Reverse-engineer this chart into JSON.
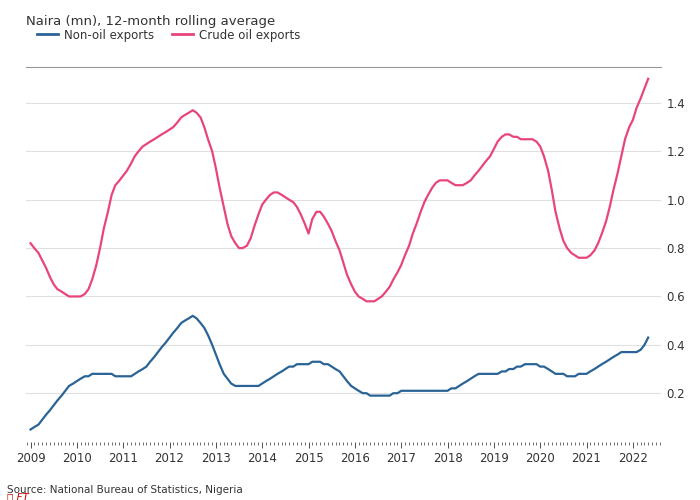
{
  "title": "Naira (mn), 12-month rolling average",
  "source": "Source: National Bureau of Statistics, Nigeria",
  "ft_credit": "Ⓕ FT",
  "legend": [
    "Non-oil exports",
    "Crude oil exports"
  ],
  "line_colors": [
    "#2a6496",
    "#e8457a"
  ],
  "background_color": "#ffffff",
  "plot_bg_color": "#ffffff",
  "text_color": "#333333",
  "grid_color": "#e0e0e0",
  "top_border_color": "#999999",
  "ylim": [
    0.0,
    1.55
  ],
  "yticks": [
    0.2,
    0.4,
    0.6,
    0.8,
    1.0,
    1.2,
    1.4
  ],
  "xlim": [
    2008.9,
    2022.6
  ],
  "x_ticks": [
    2009,
    2010,
    2011,
    2012,
    2013,
    2014,
    2015,
    2016,
    2017,
    2018,
    2019,
    2020,
    2021,
    2022
  ],
  "crude_oil_dates": [
    2009.0,
    2009.08,
    2009.17,
    2009.25,
    2009.33,
    2009.42,
    2009.5,
    2009.58,
    2009.67,
    2009.75,
    2009.83,
    2009.92,
    2010.0,
    2010.08,
    2010.17,
    2010.25,
    2010.33,
    2010.42,
    2010.5,
    2010.58,
    2010.67,
    2010.75,
    2010.83,
    2010.92,
    2011.0,
    2011.08,
    2011.17,
    2011.25,
    2011.33,
    2011.42,
    2011.5,
    2011.58,
    2011.67,
    2011.75,
    2011.83,
    2011.92,
    2012.0,
    2012.08,
    2012.17,
    2012.25,
    2012.33,
    2012.42,
    2012.5,
    2012.58,
    2012.67,
    2012.75,
    2012.83,
    2012.92,
    2013.0,
    2013.08,
    2013.17,
    2013.25,
    2013.33,
    2013.42,
    2013.5,
    2013.58,
    2013.67,
    2013.75,
    2013.83,
    2013.92,
    2014.0,
    2014.08,
    2014.17,
    2014.25,
    2014.33,
    2014.42,
    2014.5,
    2014.58,
    2014.67,
    2014.75,
    2014.83,
    2014.92,
    2015.0,
    2015.08,
    2015.17,
    2015.25,
    2015.33,
    2015.42,
    2015.5,
    2015.58,
    2015.67,
    2015.75,
    2015.83,
    2015.92,
    2016.0,
    2016.08,
    2016.17,
    2016.25,
    2016.33,
    2016.42,
    2016.5,
    2016.58,
    2016.67,
    2016.75,
    2016.83,
    2016.92,
    2017.0,
    2017.08,
    2017.17,
    2017.25,
    2017.33,
    2017.42,
    2017.5,
    2017.58,
    2017.67,
    2017.75,
    2017.83,
    2017.92,
    2018.0,
    2018.08,
    2018.17,
    2018.25,
    2018.33,
    2018.42,
    2018.5,
    2018.58,
    2018.67,
    2018.75,
    2018.83,
    2018.92,
    2019.0,
    2019.08,
    2019.17,
    2019.25,
    2019.33,
    2019.42,
    2019.5,
    2019.58,
    2019.67,
    2019.75,
    2019.83,
    2019.92,
    2020.0,
    2020.08,
    2020.17,
    2020.25,
    2020.33,
    2020.42,
    2020.5,
    2020.58,
    2020.67,
    2020.75,
    2020.83,
    2020.92,
    2021.0,
    2021.08,
    2021.17,
    2021.25,
    2021.33,
    2021.42,
    2021.5,
    2021.58,
    2021.67,
    2021.75,
    2021.83,
    2021.92,
    2022.0,
    2022.08,
    2022.17,
    2022.25,
    2022.33
  ],
  "crude_oil_values": [
    0.82,
    0.8,
    0.78,
    0.75,
    0.72,
    0.68,
    0.65,
    0.63,
    0.62,
    0.61,
    0.6,
    0.6,
    0.6,
    0.6,
    0.61,
    0.63,
    0.67,
    0.73,
    0.8,
    0.88,
    0.95,
    1.02,
    1.06,
    1.08,
    1.1,
    1.12,
    1.15,
    1.18,
    1.2,
    1.22,
    1.23,
    1.24,
    1.25,
    1.26,
    1.27,
    1.28,
    1.29,
    1.3,
    1.32,
    1.34,
    1.35,
    1.36,
    1.37,
    1.36,
    1.34,
    1.3,
    1.25,
    1.2,
    1.13,
    1.05,
    0.97,
    0.9,
    0.85,
    0.82,
    0.8,
    0.8,
    0.81,
    0.84,
    0.89,
    0.94,
    0.98,
    1.0,
    1.02,
    1.03,
    1.03,
    1.02,
    1.01,
    1.0,
    0.99,
    0.97,
    0.94,
    0.9,
    0.86,
    0.92,
    0.95,
    0.95,
    0.93,
    0.9,
    0.87,
    0.83,
    0.79,
    0.74,
    0.69,
    0.65,
    0.62,
    0.6,
    0.59,
    0.58,
    0.58,
    0.58,
    0.59,
    0.6,
    0.62,
    0.64,
    0.67,
    0.7,
    0.73,
    0.77,
    0.81,
    0.86,
    0.9,
    0.95,
    0.99,
    1.02,
    1.05,
    1.07,
    1.08,
    1.08,
    1.08,
    1.07,
    1.06,
    1.06,
    1.06,
    1.07,
    1.08,
    1.1,
    1.12,
    1.14,
    1.16,
    1.18,
    1.21,
    1.24,
    1.26,
    1.27,
    1.27,
    1.26,
    1.26,
    1.25,
    1.25,
    1.25,
    1.25,
    1.24,
    1.22,
    1.18,
    1.12,
    1.04,
    0.95,
    0.88,
    0.83,
    0.8,
    0.78,
    0.77,
    0.76,
    0.76,
    0.76,
    0.77,
    0.79,
    0.82,
    0.86,
    0.91,
    0.97,
    1.04,
    1.11,
    1.18,
    1.25,
    1.3,
    1.33,
    1.38,
    1.42,
    1.46,
    1.5
  ],
  "non_oil_dates": [
    2009.0,
    2009.08,
    2009.17,
    2009.25,
    2009.33,
    2009.42,
    2009.5,
    2009.58,
    2009.67,
    2009.75,
    2009.83,
    2009.92,
    2010.0,
    2010.08,
    2010.17,
    2010.25,
    2010.33,
    2010.42,
    2010.5,
    2010.58,
    2010.67,
    2010.75,
    2010.83,
    2010.92,
    2011.0,
    2011.08,
    2011.17,
    2011.25,
    2011.33,
    2011.42,
    2011.5,
    2011.58,
    2011.67,
    2011.75,
    2011.83,
    2011.92,
    2012.0,
    2012.08,
    2012.17,
    2012.25,
    2012.33,
    2012.42,
    2012.5,
    2012.58,
    2012.67,
    2012.75,
    2012.83,
    2012.92,
    2013.0,
    2013.08,
    2013.17,
    2013.25,
    2013.33,
    2013.42,
    2013.5,
    2013.58,
    2013.67,
    2013.75,
    2013.83,
    2013.92,
    2014.0,
    2014.08,
    2014.17,
    2014.25,
    2014.33,
    2014.42,
    2014.5,
    2014.58,
    2014.67,
    2014.75,
    2014.83,
    2014.92,
    2015.0,
    2015.08,
    2015.17,
    2015.25,
    2015.33,
    2015.42,
    2015.5,
    2015.58,
    2015.67,
    2015.75,
    2015.83,
    2015.92,
    2016.0,
    2016.08,
    2016.17,
    2016.25,
    2016.33,
    2016.42,
    2016.5,
    2016.58,
    2016.67,
    2016.75,
    2016.83,
    2016.92,
    2017.0,
    2017.08,
    2017.17,
    2017.25,
    2017.33,
    2017.42,
    2017.5,
    2017.58,
    2017.67,
    2017.75,
    2017.83,
    2017.92,
    2018.0,
    2018.08,
    2018.17,
    2018.25,
    2018.33,
    2018.42,
    2018.5,
    2018.58,
    2018.67,
    2018.75,
    2018.83,
    2018.92,
    2019.0,
    2019.08,
    2019.17,
    2019.25,
    2019.33,
    2019.42,
    2019.5,
    2019.58,
    2019.67,
    2019.75,
    2019.83,
    2019.92,
    2020.0,
    2020.08,
    2020.17,
    2020.25,
    2020.33,
    2020.42,
    2020.5,
    2020.58,
    2020.67,
    2020.75,
    2020.83,
    2020.92,
    2021.0,
    2021.08,
    2021.17,
    2021.25,
    2021.33,
    2021.42,
    2021.5,
    2021.58,
    2021.67,
    2021.75,
    2021.83,
    2021.92,
    2022.0,
    2022.08,
    2022.17,
    2022.25,
    2022.33
  ],
  "non_oil_values": [
    0.05,
    0.06,
    0.07,
    0.09,
    0.11,
    0.13,
    0.15,
    0.17,
    0.19,
    0.21,
    0.23,
    0.24,
    0.25,
    0.26,
    0.27,
    0.27,
    0.28,
    0.28,
    0.28,
    0.28,
    0.28,
    0.28,
    0.27,
    0.27,
    0.27,
    0.27,
    0.27,
    0.28,
    0.29,
    0.3,
    0.31,
    0.33,
    0.35,
    0.37,
    0.39,
    0.41,
    0.43,
    0.45,
    0.47,
    0.49,
    0.5,
    0.51,
    0.52,
    0.51,
    0.49,
    0.47,
    0.44,
    0.4,
    0.36,
    0.32,
    0.28,
    0.26,
    0.24,
    0.23,
    0.23,
    0.23,
    0.23,
    0.23,
    0.23,
    0.23,
    0.24,
    0.25,
    0.26,
    0.27,
    0.28,
    0.29,
    0.3,
    0.31,
    0.31,
    0.32,
    0.32,
    0.32,
    0.32,
    0.33,
    0.33,
    0.33,
    0.32,
    0.32,
    0.31,
    0.3,
    0.29,
    0.27,
    0.25,
    0.23,
    0.22,
    0.21,
    0.2,
    0.2,
    0.19,
    0.19,
    0.19,
    0.19,
    0.19,
    0.19,
    0.2,
    0.2,
    0.21,
    0.21,
    0.21,
    0.21,
    0.21,
    0.21,
    0.21,
    0.21,
    0.21,
    0.21,
    0.21,
    0.21,
    0.21,
    0.22,
    0.22,
    0.23,
    0.24,
    0.25,
    0.26,
    0.27,
    0.28,
    0.28,
    0.28,
    0.28,
    0.28,
    0.28,
    0.29,
    0.29,
    0.3,
    0.3,
    0.31,
    0.31,
    0.32,
    0.32,
    0.32,
    0.32,
    0.31,
    0.31,
    0.3,
    0.29,
    0.28,
    0.28,
    0.28,
    0.27,
    0.27,
    0.27,
    0.28,
    0.28,
    0.28,
    0.29,
    0.3,
    0.31,
    0.32,
    0.33,
    0.34,
    0.35,
    0.36,
    0.37,
    0.37,
    0.37,
    0.37,
    0.37,
    0.38,
    0.4,
    0.43
  ]
}
